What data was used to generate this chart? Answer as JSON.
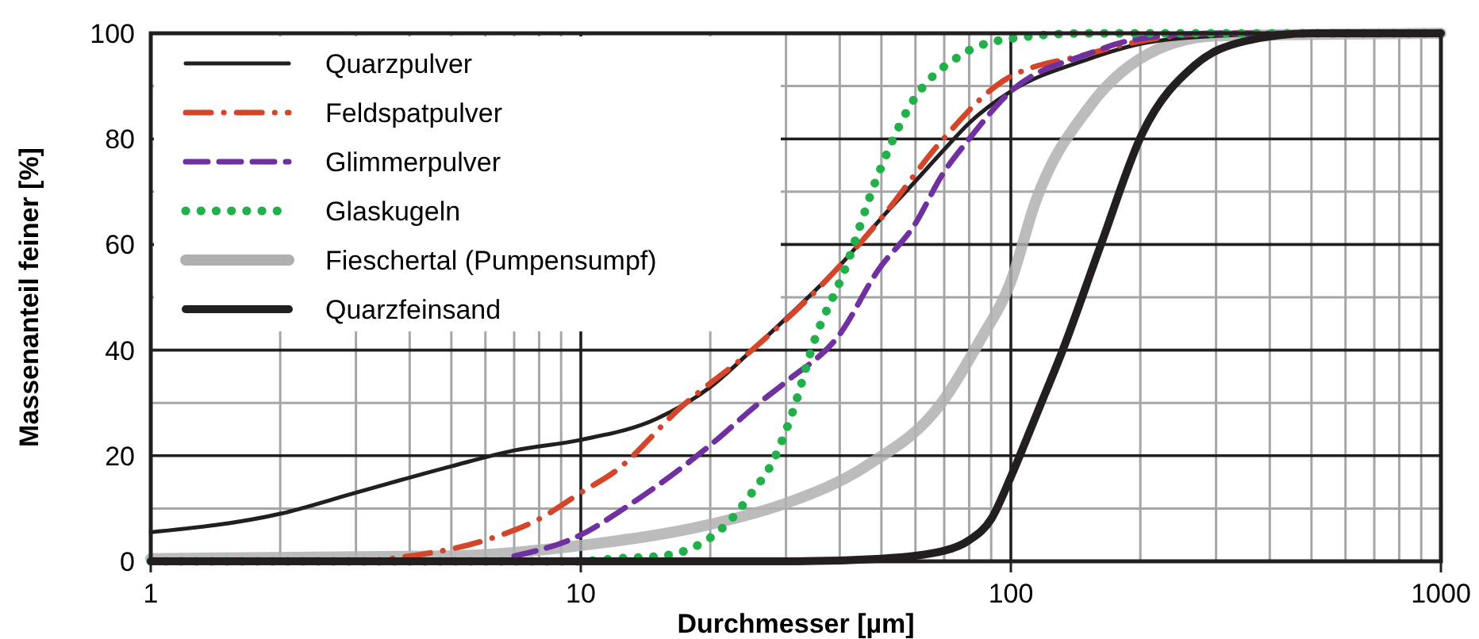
{
  "chart_data": {
    "type": "line",
    "xlabel": "Durchmesser [µm]",
    "ylabel": "Massenanteil feiner [%]",
    "log": "x",
    "xlim": [
      1,
      1000
    ],
    "xticks": [
      1,
      10,
      100,
      1000
    ],
    "ylim": [
      0,
      100
    ],
    "yticks": [
      0,
      20,
      40,
      60,
      80,
      100
    ],
    "grid": true,
    "legend": "top left",
    "series": [
      {
        "name": "Quarzpulver",
        "color": "#231f20",
        "line_style": "solid",
        "x": [
          1,
          2,
          3,
          5,
          7,
          10,
          15,
          20,
          25,
          30,
          40,
          50,
          60,
          70,
          80,
          100,
          150,
          200,
          300,
          500,
          1000
        ],
        "values": [
          5.5,
          9,
          13,
          18,
          21,
          23,
          27,
          33,
          40,
          46,
          56,
          65,
          72,
          78,
          83,
          89,
          95,
          98,
          99.5,
          100,
          100
        ]
      },
      {
        "name": "Feldspatpulver",
        "color": "#d4462a",
        "line_style": "dashed",
        "x": [
          1,
          3,
          4,
          6,
          8,
          10,
          12,
          17,
          25,
          36,
          50,
          68,
          96,
          150,
          200,
          300,
          1000
        ],
        "values": [
          0,
          0,
          1,
          4,
          8,
          13,
          17,
          29,
          40,
          52,
          65,
          79,
          91,
          96,
          98.5,
          100,
          100
        ]
      },
      {
        "name": "Glimmerpulver",
        "color": "#7030a0",
        "line_style": "dashed",
        "x": [
          7,
          10,
          12.6,
          20,
          26,
          30,
          40,
          49,
          60,
          69,
          80,
          100,
          150,
          200,
          300,
          1000
        ],
        "values": [
          1,
          5,
          10,
          22,
          30,
          34,
          43,
          55,
          64,
          73,
          80,
          89,
          96,
          99,
          100,
          100
        ]
      },
      {
        "name": "Glaskugeln",
        "color": "#22b04b",
        "line_style": "dotted",
        "x": [
          1,
          10,
          12,
          15.4,
          21.8,
          25,
          28,
          31,
          35,
          41,
          49,
          58,
          77,
          100,
          150,
          1000
        ],
        "values": [
          0,
          0,
          0.5,
          1,
          7,
          13,
          19,
          28,
          42,
          55,
          73,
          86,
          96,
          99,
          100,
          100
        ]
      },
      {
        "name": "Fieschertal (Pumpensumpf)",
        "color": "#b0b0b0",
        "line_style": "solid",
        "x": [
          1,
          5,
          10,
          20,
          30,
          46,
          69,
          85,
          100,
          114,
          152,
          220,
          300,
          1000
        ],
        "values": [
          0.5,
          1,
          3,
          7,
          11,
          18,
          30,
          42,
          53,
          68,
          86,
          97,
          99.5,
          100
        ]
      },
      {
        "name": "Quarzfeinsand",
        "color": "#231f20",
        "line_style": "solid",
        "x": [
          1,
          30,
          50,
          70,
          80,
          90,
          100,
          115,
          132,
          162,
          202,
          268,
          350,
          500,
          1000
        ],
        "values": [
          0,
          0,
          0.5,
          2,
          4,
          8,
          16,
          28,
          40,
          60,
          81,
          94,
          98.5,
          100,
          100
        ]
      }
    ]
  }
}
